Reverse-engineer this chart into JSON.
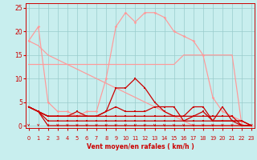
{
  "bg_color": "#c8eeee",
  "grid_color": "#99cccc",
  "xlabel": "Vent moyen/en rafales ( km/h )",
  "xlim": [
    -0.3,
    23.3
  ],
  "ylim": [
    -0.5,
    26
  ],
  "yticks": [
    0,
    5,
    10,
    15,
    20,
    25
  ],
  "xtick_labels": [
    "0",
    "1",
    "2",
    "3",
    "4",
    "5",
    "6",
    "7",
    "8",
    "9",
    "10",
    "11",
    "12",
    "13",
    "14",
    "15",
    "16",
    "17",
    "18",
    "19",
    "20",
    "21",
    "22",
    "23"
  ],
  "light_color": "#ff9999",
  "dark_color": "#cc0000",
  "x": [
    0,
    1,
    2,
    3,
    4,
    5,
    6,
    7,
    8,
    9,
    10,
    11,
    12,
    13,
    14,
    15,
    16,
    17,
    18,
    19,
    20,
    21,
    22,
    23
  ],
  "line_light_peak": [
    18,
    21,
    5,
    3,
    3,
    2,
    3,
    3,
    10,
    21,
    24,
    22,
    24,
    24,
    23,
    20,
    19,
    18,
    15,
    6,
    3,
    2,
    1,
    0
  ],
  "line_light_flat": [
    13,
    13,
    13,
    13,
    13,
    13,
    13,
    13,
    13,
    13,
    13,
    13,
    13,
    13,
    13,
    13,
    15,
    15,
    15,
    15,
    15,
    15,
    0,
    0
  ],
  "line_light_diag": [
    18,
    17,
    15,
    14,
    13,
    12,
    11,
    10,
    9,
    8,
    7,
    6,
    5,
    4,
    3,
    2,
    1,
    0,
    0,
    0,
    0,
    0,
    0,
    0
  ],
  "line_dark_peak": [
    4,
    3,
    2,
    2,
    2,
    2,
    2,
    2,
    3,
    8,
    8,
    10,
    8,
    5,
    3,
    2,
    2,
    4,
    4,
    1,
    1,
    1,
    1,
    0
  ],
  "line_dark_flat2": [
    4,
    3,
    2,
    2,
    2,
    2,
    2,
    2,
    2,
    2,
    2,
    2,
    2,
    2,
    2,
    2,
    2,
    2,
    2,
    2,
    2,
    2,
    0,
    0
  ],
  "line_dark_flat1": [
    4,
    3,
    1,
    1,
    1,
    1,
    1,
    1,
    1,
    1,
    1,
    1,
    1,
    1,
    1,
    1,
    1,
    1,
    1,
    1,
    1,
    1,
    0,
    0
  ],
  "line_dark_flat0": [
    4,
    3,
    0,
    0,
    0,
    0,
    0,
    0,
    0,
    0,
    0,
    0,
    0,
    0,
    0,
    0,
    0,
    0,
    0,
    0,
    0,
    0,
    0,
    0
  ],
  "line_dark_var": [
    4,
    3,
    2,
    2,
    2,
    3,
    2,
    2,
    3,
    4,
    3,
    3,
    3,
    4,
    4,
    4,
    1,
    2,
    3,
    1,
    4,
    1,
    1,
    0
  ],
  "arrow_angles": [
    225,
    225,
    180,
    225,
    225,
    225,
    225,
    225,
    270,
    270,
    270,
    270,
    270,
    270,
    270,
    270,
    270,
    270,
    270,
    270,
    270,
    270,
    270,
    270
  ]
}
